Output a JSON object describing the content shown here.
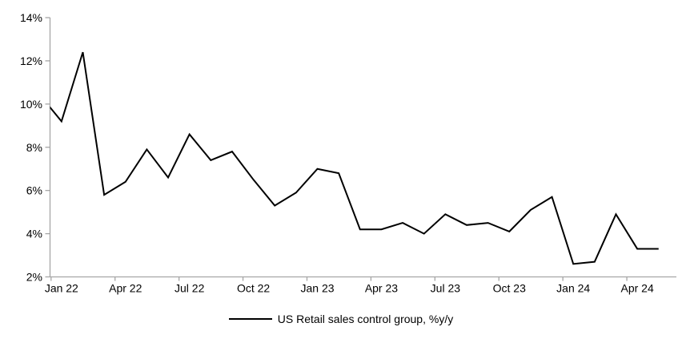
{
  "chart": {
    "title": "",
    "legend": {
      "series_label": "US Retail sales control group, %y/y"
    },
    "y_axis": {
      "tick_labels": [
        "14%",
        "12%",
        "10%",
        "8%",
        "6%",
        "4%",
        "2%"
      ]
    },
    "x_axis": {
      "tick_labels": [
        "Jan 22",
        "Apr 22",
        "Jul 22",
        "Oct 22",
        "Jan 23",
        "Apr 23",
        "Jul 23",
        "Oct 23",
        "Jan 24",
        "Apr 24"
      ]
    },
    "colors": {
      "line": "#000000",
      "axis": "#a6a6a6",
      "text": "#000000",
      "background": "#ffffff"
    }
  },
  "chart_data": {
    "type": "line",
    "title": "",
    "x": [
      "Dec 21",
      "Jan 22",
      "Feb 22",
      "Mar 22",
      "Apr 22",
      "May 22",
      "Jun 22",
      "Jul 22",
      "Aug 22",
      "Sep 22",
      "Oct 22",
      "Nov 22",
      "Dec 22",
      "Jan 23",
      "Feb 23",
      "Mar 23",
      "Apr 23",
      "May 23",
      "Jun 23",
      "Jul 23",
      "Aug 23",
      "Sep 23",
      "Oct 23",
      "Nov 23",
      "Dec 23",
      "Jan 24",
      "Feb 24",
      "Mar 24",
      "Apr 24",
      "May 24"
    ],
    "series": [
      {
        "name": "US Retail sales control group, %y/y",
        "values": [
          10.4,
          9.2,
          12.4,
          5.8,
          6.4,
          7.9,
          6.6,
          8.6,
          7.4,
          7.8,
          6.5,
          5.3,
          5.9,
          7.0,
          6.8,
          4.2,
          4.2,
          4.5,
          4.0,
          4.9,
          4.4,
          4.5,
          4.1,
          5.1,
          5.7,
          2.6,
          2.7,
          4.9,
          3.3,
          3.3
        ]
      }
    ],
    "ylim": [
      2,
      14
    ],
    "y_tick_step": 2,
    "y_unit": "%",
    "x_tick_interval_months": 3,
    "grid": false,
    "legend_position": "bottom-center",
    "first_point_clipped_by_y_axis": true
  }
}
